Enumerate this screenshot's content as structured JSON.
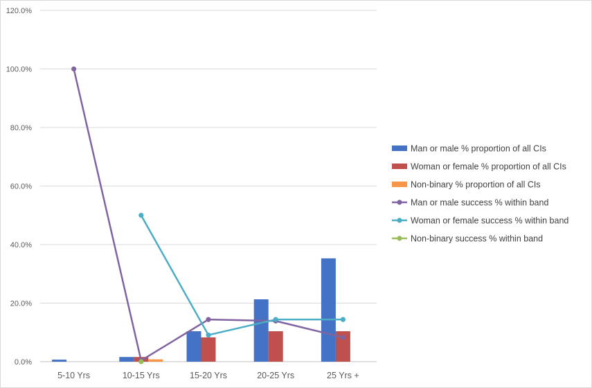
{
  "chart_data": {
    "type": "bar",
    "categories": [
      "5-10 Yrs",
      "10-15 Yrs",
      "15-20 Yrs",
      "20-25 Yrs",
      "25 Yrs +"
    ],
    "ylim": [
      0,
      120
    ],
    "yticks": [
      "0.0%",
      "20.0%",
      "40.0%",
      "60.0%",
      "80.0%",
      "100.0%",
      "120.0%"
    ],
    "grid": true,
    "legend_position": "right",
    "bar_series": [
      {
        "name": "Man or male % proportion of all CIs",
        "color": "#4472C4",
        "values": [
          0.7,
          1.6,
          10.4,
          21.3,
          35.3
        ]
      },
      {
        "name": "Woman or female % proportion of all CIs",
        "color": "#C0504D",
        "values": [
          0,
          1.6,
          8.3,
          10.4,
          10.4
        ]
      },
      {
        "name": "Non-binary % proportion of all CIs",
        "color": "#F79646",
        "values": [
          0,
          0.8,
          0,
          0,
          0
        ]
      }
    ],
    "line_series": [
      {
        "name": "Man or male success % within band",
        "color": "#8064A2",
        "values": [
          100.0,
          0.4,
          14.4,
          13.9,
          8.3
        ]
      },
      {
        "name": "Woman or female success % within band",
        "color": "#4BACC6",
        "values": [
          null,
          50.0,
          9.1,
          14.4,
          14.4
        ]
      },
      {
        "name": "Non-binary success % within band",
        "color": "#9BBB59",
        "values": [
          null,
          0.0,
          null,
          null,
          null
        ]
      }
    ]
  }
}
